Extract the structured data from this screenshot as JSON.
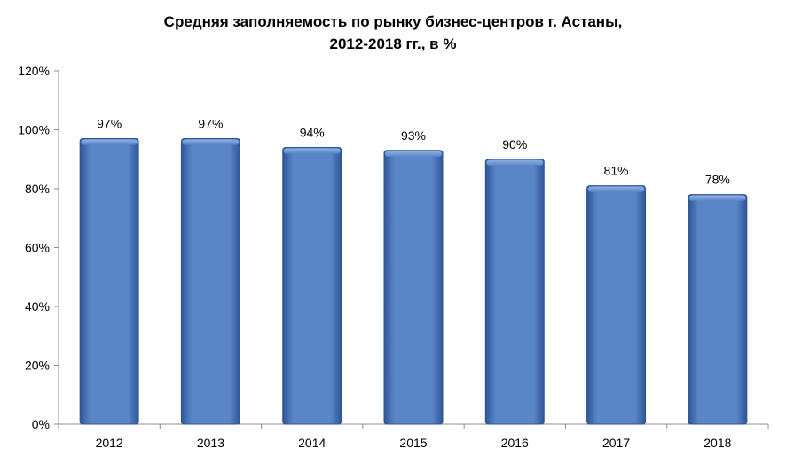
{
  "chart_data": {
    "type": "bar",
    "title": "Средняя заполняемость по рынку бизнес-центров г. Астаны,",
    "subtitle": "2012-2018 гг., в %",
    "xlabel": "",
    "ylabel": "",
    "categories": [
      "2012",
      "2013",
      "2014",
      "2015",
      "2016",
      "2017",
      "2018"
    ],
    "values": [
      97,
      97,
      94,
      93,
      90,
      81,
      78
    ],
    "data_labels": [
      "97%",
      "97%",
      "94%",
      "93%",
      "90%",
      "81%",
      "78%"
    ],
    "ylim": [
      0,
      120
    ],
    "y_ticks": [
      0,
      20,
      40,
      60,
      80,
      100,
      120
    ],
    "y_tick_labels": [
      "0%",
      "20%",
      "40%",
      "60%",
      "80%",
      "100%",
      "120%"
    ],
    "grid": false,
    "legend": "none",
    "colors": {
      "bar_fill": "#5a86c8",
      "bar_highlight": "#8fb0e0",
      "bar_edge": "#2f5597",
      "axis": "#8c8c8c"
    }
  }
}
